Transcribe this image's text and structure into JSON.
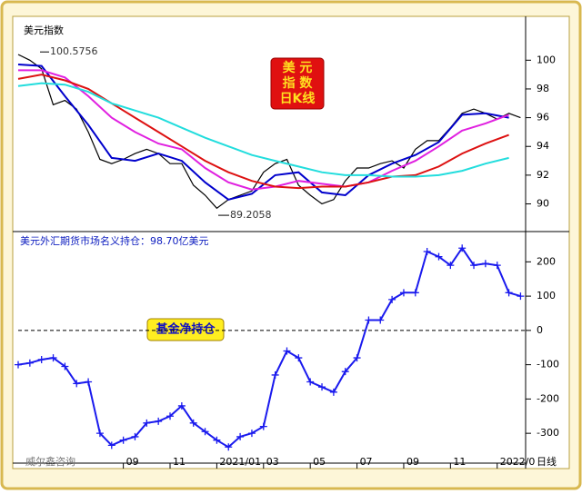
{
  "chart_data": [
    {
      "type": "line",
      "title": "美元指数",
      "badge": [
        "美 元",
        "指 数",
        "日K线"
      ],
      "peak": 100.5756,
      "trough": 89.2058,
      "xlim": [
        4.5,
        26.1
      ],
      "ylim": [
        88.2,
        102.8
      ],
      "yticks": [
        90,
        92,
        94,
        96,
        98,
        100
      ],
      "series": [
        {
          "color": "#000000",
          "x": [
            4.5,
            5,
            5.5,
            6,
            6.5,
            7,
            7.5,
            8,
            8.5,
            9,
            9.5,
            10,
            10.5,
            11,
            11.5,
            12,
            12.5,
            13,
            13.5,
            14,
            14.5,
            15,
            15.5,
            16,
            16.5,
            17,
            17.5,
            18,
            18.5,
            19,
            19.5,
            20,
            20.5,
            21,
            21.5,
            22,
            22.5,
            23,
            23.5,
            24,
            24.5,
            25,
            25.5,
            26
          ],
          "values": [
            100.4,
            100.0,
            99.4,
            96.9,
            97.2,
            96.6,
            95.0,
            93.1,
            92.8,
            93.1,
            93.5,
            93.8,
            93.5,
            92.8,
            92.8,
            91.3,
            90.6,
            89.7,
            90.3,
            90.6,
            90.9,
            92.2,
            92.8,
            93.1,
            91.3,
            90.6,
            90.0,
            90.3,
            91.6,
            92.5,
            92.5,
            92.8,
            93.0,
            92.5,
            93.8,
            94.4,
            94.4,
            95.3,
            96.3,
            96.6,
            96.3,
            95.9,
            96.3,
            96.0
          ]
        },
        {
          "color": "#0000cc",
          "x": [
            4.5,
            5.5,
            6.5,
            7.5,
            8.5,
            9.5,
            10.5,
            11.5,
            12.5,
            13.5,
            14.5,
            15.5,
            16.5,
            17.5,
            18.5,
            19.5,
            20.5,
            21.5,
            22.5,
            23.5,
            24.5,
            25.5
          ],
          "values": [
            99.7,
            99.6,
            97.5,
            95.5,
            93.2,
            93.0,
            93.5,
            93.0,
            91.5,
            90.3,
            90.7,
            92.0,
            92.2,
            90.8,
            90.6,
            92.0,
            92.8,
            93.4,
            94.3,
            96.2,
            96.3,
            96.0
          ]
        },
        {
          "color": "#e020e0",
          "x": [
            4.5,
            5.5,
            6.5,
            7.5,
            8.5,
            9.5,
            10.5,
            11.5,
            12.5,
            13.5,
            14.5,
            15.5,
            16.5,
            17.5,
            18.5,
            19.5,
            20.5,
            21.5,
            22.5,
            23.5,
            24.5,
            25.5
          ],
          "values": [
            99.3,
            99.3,
            98.8,
            97.5,
            96.0,
            95.0,
            94.2,
            93.8,
            92.5,
            91.5,
            91.0,
            91.2,
            91.6,
            91.4,
            91.2,
            91.5,
            92.3,
            93.0,
            94.0,
            95.1,
            95.6,
            96.2
          ]
        },
        {
          "color": "#dd1111",
          "x": [
            4.5,
            5.5,
            6.5,
            7.5,
            8.5,
            9.5,
            10.5,
            11.5,
            12.5,
            13.5,
            14.5,
            15.5,
            16.5,
            17.5,
            18.5,
            19.5,
            20.5,
            21.5,
            22.5,
            23.5,
            24.5,
            25.5
          ],
          "values": [
            98.7,
            99.0,
            98.6,
            98.0,
            97.0,
            96.0,
            95.0,
            94.0,
            93.0,
            92.2,
            91.6,
            91.2,
            91.1,
            91.2,
            91.2,
            91.5,
            91.9,
            92.0,
            92.6,
            93.5,
            94.2,
            94.8
          ]
        },
        {
          "color": "#22dddd",
          "x": [
            4.5,
            5.5,
            6.5,
            7.5,
            8.5,
            9.5,
            10.5,
            11.5,
            12.5,
            13.5,
            14.5,
            15.5,
            16.5,
            17.5,
            18.5,
            19.5,
            20.5,
            21.5,
            22.5,
            23.5,
            24.5,
            25.5
          ],
          "values": [
            98.2,
            98.4,
            98.3,
            97.8,
            97.0,
            96.5,
            96.0,
            95.3,
            94.6,
            94.0,
            93.4,
            93.0,
            92.6,
            92.2,
            92.0,
            92.0,
            91.9,
            91.9,
            92.0,
            92.3,
            92.8,
            93.2
          ]
        }
      ]
    },
    {
      "type": "line",
      "title": "美元外汇期货市场名义持仓：98.70亿美元",
      "badge": "基金净持仓",
      "marker": "plus",
      "zero_line": true,
      "xlim": [
        4.5,
        26.1
      ],
      "ylim": [
        -387,
        283
      ],
      "yticks": [
        -300,
        -200,
        -100,
        0,
        100,
        200
      ],
      "xticks": [
        {
          "value": 9,
          "label": "09"
        },
        {
          "value": 11,
          "label": "11"
        },
        {
          "value": 13,
          "label": "2021/01"
        },
        {
          "value": 15,
          "label": "03"
        },
        {
          "value": 17,
          "label": "05"
        },
        {
          "value": 19,
          "label": "07"
        },
        {
          "value": 21,
          "label": "09"
        },
        {
          "value": 23,
          "label": "11"
        },
        {
          "value": 25,
          "label": "2022/0"
        }
      ],
      "series": [
        {
          "color": "#1a1aee",
          "x": [
            4.5,
            5,
            5.5,
            6,
            6.5,
            7,
            7.5,
            8,
            8.5,
            9,
            9.5,
            10,
            10.5,
            11,
            11.5,
            12,
            12.5,
            13,
            13.5,
            14,
            14.5,
            15,
            15.5,
            16,
            16.5,
            17,
            17.5,
            18,
            18.5,
            19,
            19.5,
            20,
            20.5,
            21,
            21.5,
            22,
            22.5,
            23,
            23.5,
            24,
            24.5,
            25,
            25.5,
            26
          ],
          "values": [
            -100,
            -95,
            -85,
            -80,
            -105,
            -155,
            -150,
            -300,
            -335,
            -320,
            -310,
            -270,
            -265,
            -250,
            -220,
            -270,
            -295,
            -320,
            -340,
            -310,
            -300,
            -280,
            -130,
            -60,
            -80,
            -150,
            -165,
            -180,
            -120,
            -80,
            30,
            30,
            90,
            110,
            110,
            230,
            215,
            190,
            240,
            190,
            195,
            190,
            110,
            100
          ]
        }
      ]
    }
  ],
  "footer": {
    "source": "威尔鑫咨询",
    "period": "日线"
  }
}
